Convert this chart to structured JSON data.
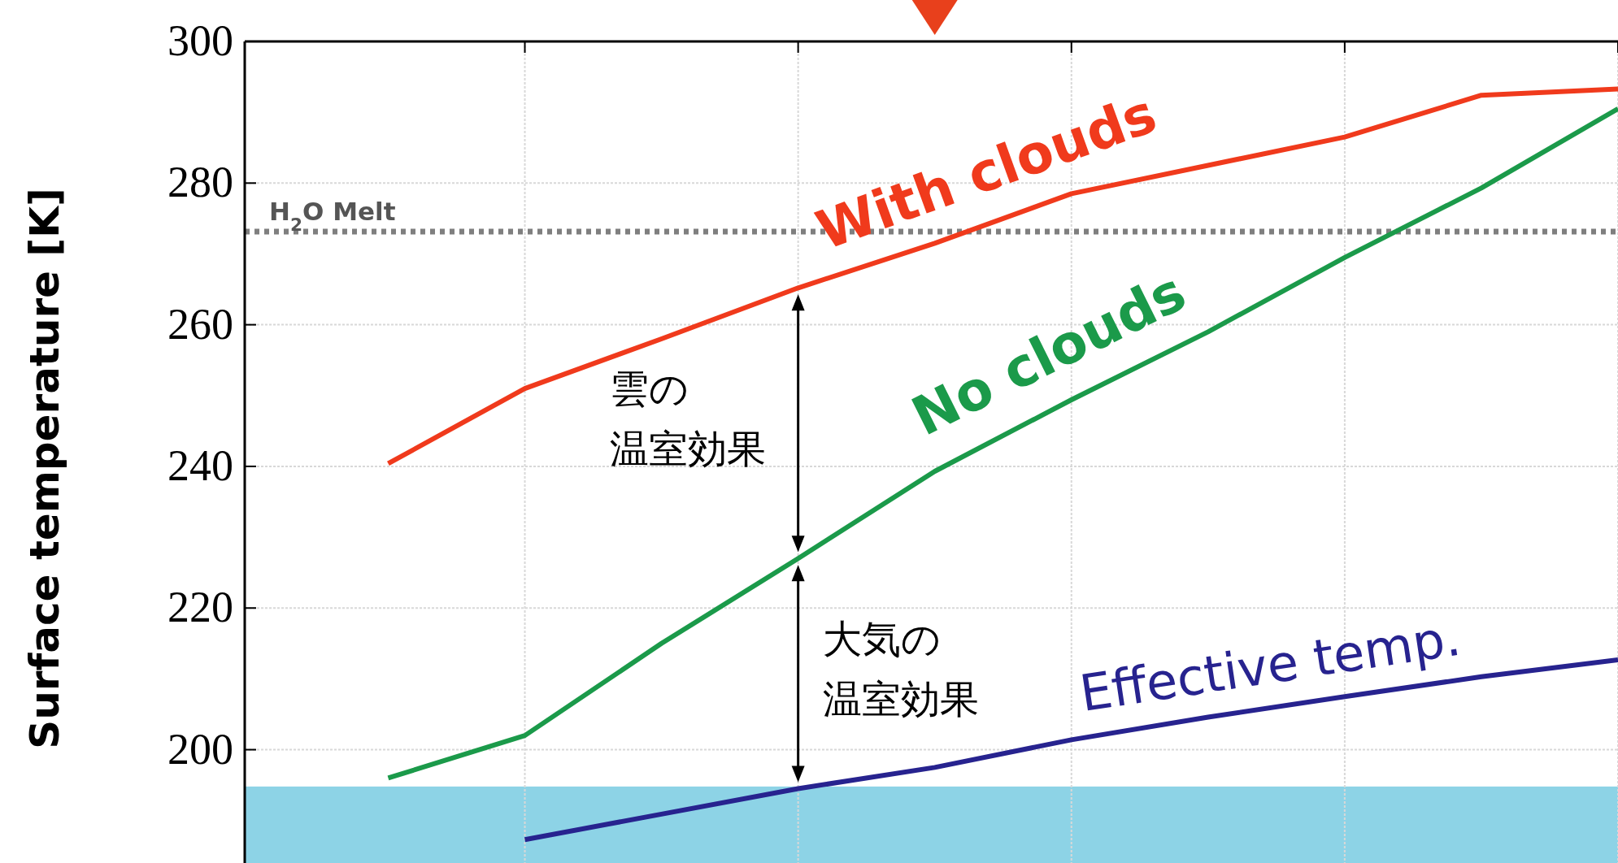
{
  "chart_data": {
    "type": "line",
    "ylabel": "Surface temperature [K]",
    "categories": [
      null,
      null,
      null,
      null,
      null,
      null,
      null,
      null,
      null,
      null
    ],
    "series": [
      {
        "name": "With clouds",
        "color": "#f03a1c",
        "values": [
          240.4,
          251,
          258,
          265.2,
          271.5,
          278.5,
          282.5,
          286.5,
          292.4,
          293.3
        ]
      },
      {
        "name": "No clouds",
        "color": "#1b9a4a",
        "values": [
          196,
          202,
          215,
          227,
          239.3,
          249.4,
          259,
          269.5,
          279.3,
          290.5
        ]
      },
      {
        "name": "Effective temp.",
        "color": "#27238f",
        "values": [
          null,
          187.3,
          190.9,
          194.5,
          197.5,
          201.4,
          204.6,
          207.5,
          210.3,
          212.7
        ]
      }
    ],
    "ylim": [
      184,
      300
    ],
    "yticks": [
      200,
      220,
      240,
      260,
      280,
      300
    ],
    "grid": true,
    "marker": "none",
    "line_style": "solid",
    "ref_lines": [
      {
        "axis": "y",
        "value": 273.15,
        "label": "H$_{2}$O Melt",
        "color": "#7f7f7f",
        "line_style": "dotted"
      }
    ],
    "bands": [
      {
        "axis": "y",
        "from": 184,
        "to": 194.8,
        "color": "#8dd3e6"
      }
    ],
    "annotations": [
      "雲の温室効果",
      "大気の温室効果"
    ]
  }
}
